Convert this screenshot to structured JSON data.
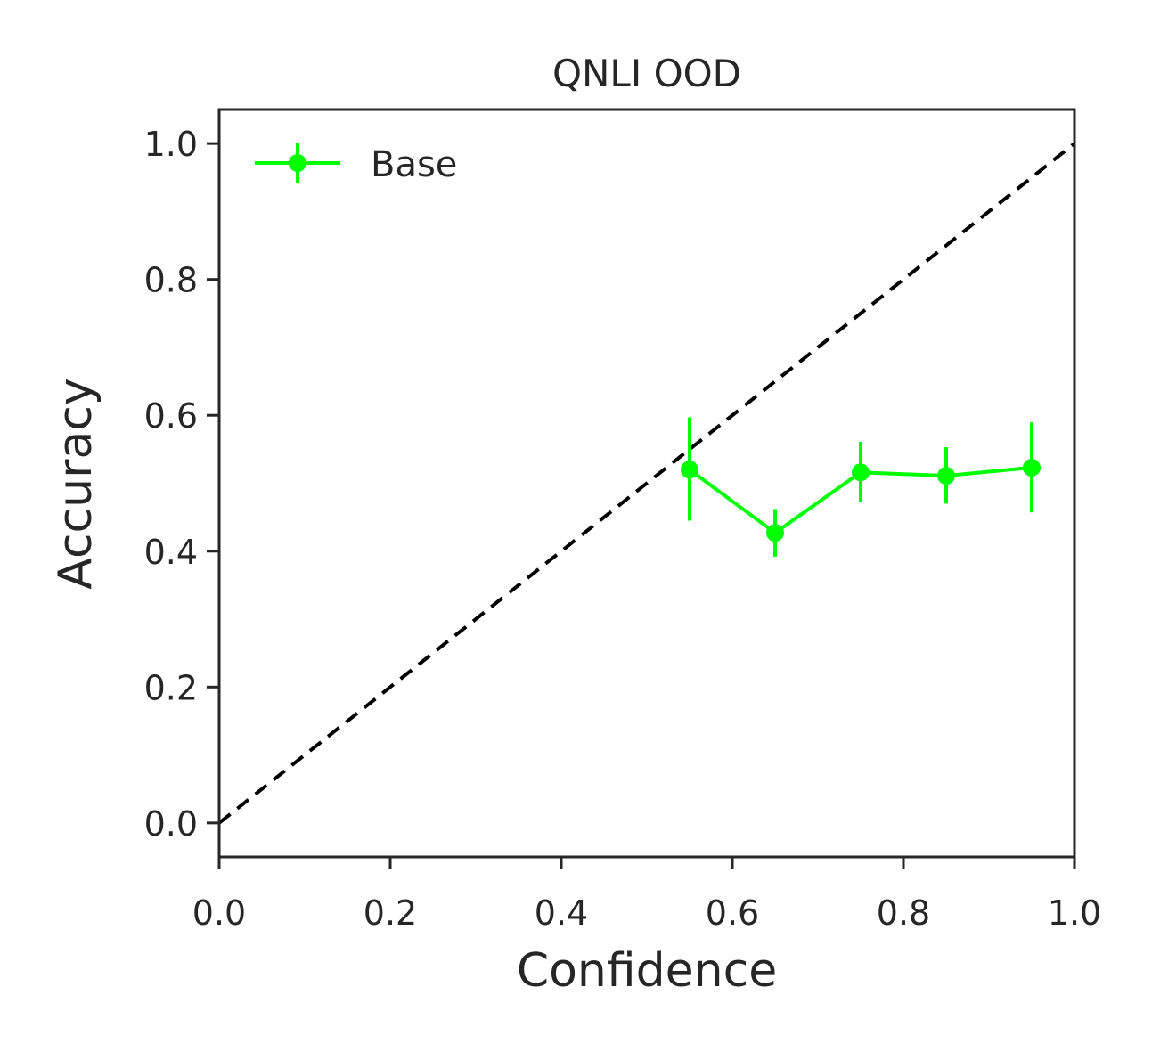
{
  "chart_data": {
    "type": "line",
    "title": "QNLI OOD",
    "xlabel": "Confidence",
    "ylabel": "Accuracy",
    "xlim": [
      0.0,
      1.0
    ],
    "ylim": [
      -0.05,
      1.05
    ],
    "xticks": [
      "0.0",
      "0.2",
      "0.4",
      "0.6",
      "0.8",
      "1.0"
    ],
    "yticks": [
      "0.0",
      "0.2",
      "0.4",
      "0.6",
      "0.8",
      "1.0"
    ],
    "grid": false,
    "legend_position": "top-left",
    "reference_line": {
      "style": "dashed",
      "color": "#000000",
      "from": [
        0.0,
        0.0
      ],
      "to": [
        1.0,
        1.0
      ]
    },
    "series": [
      {
        "name": "Base",
        "color": "#00ff00",
        "x": [
          0.55,
          0.65,
          0.75,
          0.85,
          0.95
        ],
        "y": [
          0.52,
          0.427,
          0.516,
          0.511,
          0.523
        ],
        "yerr_low": [
          0.445,
          0.392,
          0.472,
          0.47,
          0.457
        ],
        "yerr_high": [
          0.597,
          0.462,
          0.561,
          0.553,
          0.59
        ]
      }
    ]
  }
}
